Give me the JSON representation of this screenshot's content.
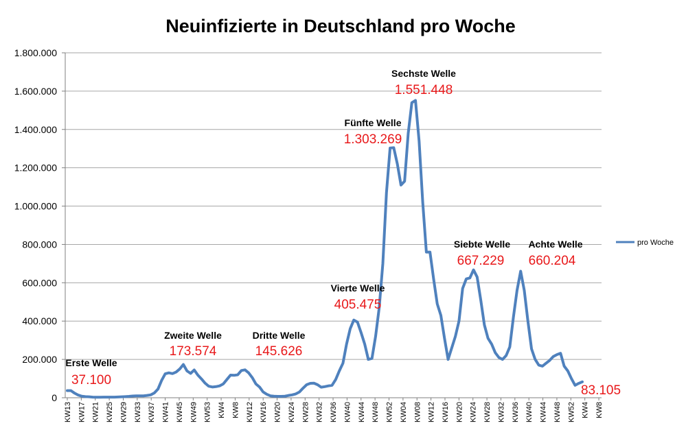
{
  "chart_data": {
    "type": "line",
    "title": "Neuinfizierte in Deutschland pro Woche",
    "xlabel": "",
    "ylabel": "",
    "ylim": [
      0,
      1800000
    ],
    "y_ticks": [
      0,
      200000,
      400000,
      600000,
      800000,
      1000000,
      1200000,
      1400000,
      1600000,
      1800000
    ],
    "y_tick_labels": [
      "0",
      "200.000",
      "400.000",
      "600.000",
      "800.000",
      "1.000.000",
      "1.200.000",
      "1.400.000",
      "1.600.000",
      "1.800.000"
    ],
    "x_tick_labels": [
      "KW13",
      "KW17",
      "KW21",
      "KW25",
      "KW29",
      "KW33",
      "KW37",
      "KW41",
      "KW45",
      "KW49",
      "KW53",
      "KW4",
      "KW8",
      "KW12",
      "KW16",
      "KW20",
      "KW24",
      "KW28",
      "KW32",
      "KW36",
      "KW40",
      "KW44",
      "KW48",
      "KW52",
      "KW04",
      "KW08",
      "KW12",
      "KW16",
      "KW20",
      "KW24",
      "KW28",
      "KW32",
      "KW36",
      "KW40",
      "KW44",
      "KW48",
      "KW52",
      "KW4",
      "KW8"
    ],
    "grid": true,
    "legend_position": "right",
    "colors": {
      "series": "#4f81bd",
      "annotation_value": "#e8181a",
      "grid": "#a6a6a6"
    },
    "series": [
      {
        "name": "pro Woche",
        "x_start": "KW13 2020",
        "values": [
          37100,
          37000,
          24000,
          14000,
          8000,
          6000,
          5000,
          3000,
          2500,
          2500,
          3000,
          3000,
          3000,
          3000,
          4000,
          5000,
          6000,
          7000,
          9000,
          10000,
          10000,
          10000,
          12000,
          15000,
          25000,
          45000,
          90000,
          125000,
          130000,
          126000,
          134000,
          150000,
          173574,
          140000,
          127000,
          145000,
          118000,
          98000,
          76000,
          60000,
          56000,
          58000,
          62000,
          72000,
          95000,
          118000,
          117000,
          120000,
          142000,
          145626,
          130000,
          105000,
          72000,
          56000,
          30000,
          18000,
          10000,
          8000,
          7000,
          7000,
          8000,
          12000,
          15000,
          20000,
          30000,
          50000,
          68000,
          75000,
          76000,
          68000,
          55000,
          58000,
          62000,
          65000,
          95000,
          140000,
          180000,
          280000,
          360000,
          405475,
          395000,
          340000,
          280000,
          200000,
          205000,
          320000,
          470000,
          700000,
          1070000,
          1303269,
          1305000,
          1220000,
          1110000,
          1130000,
          1380000,
          1540000,
          1551448,
          1340000,
          1020000,
          760000,
          760000,
          620000,
          490000,
          430000,
          310000,
          200000,
          260000,
          320000,
          400000,
          570000,
          620000,
          625000,
          667229,
          630000,
          510000,
          380000,
          310000,
          280000,
          235000,
          210000,
          200000,
          220000,
          265000,
          420000,
          560000,
          660204,
          560000,
          400000,
          255000,
          200000,
          170000,
          165000,
          180000,
          195000,
          215000,
          225000,
          232000,
          165000,
          140000,
          100000,
          65000,
          75000,
          83105
        ]
      }
    ],
    "annotations": [
      {
        "label": "Erste Welle",
        "value": "37.100",
        "index": 0
      },
      {
        "label": "Zweite Welle",
        "value": "173.574",
        "index": 32
      },
      {
        "label": "Dritte Welle",
        "value": "145.626",
        "index": 49
      },
      {
        "label": "Vierte Welle",
        "value": "405.475",
        "index": 79
      },
      {
        "label": "Fünfte Welle",
        "value": "1.303.269",
        "index": 89
      },
      {
        "label": "Sechste Welle",
        "value": "1.551.448",
        "index": 96
      },
      {
        "label": "Siebte Welle",
        "value": "667.229",
        "index": 112
      },
      {
        "label": "Achte Welle",
        "value": "660.204",
        "index": 126
      },
      {
        "label": "",
        "value": "83.105",
        "index": 143
      }
    ]
  }
}
